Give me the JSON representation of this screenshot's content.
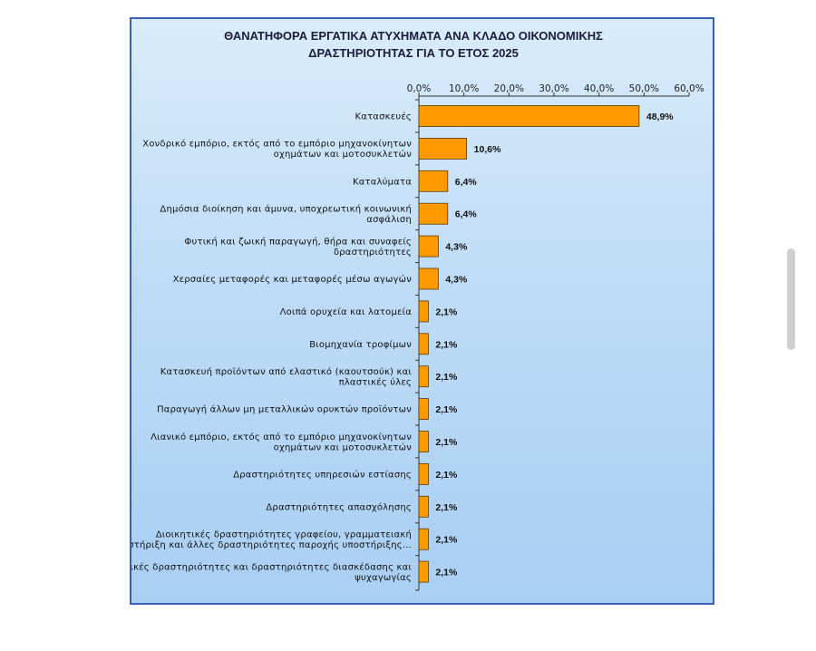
{
  "chart_data": {
    "type": "bar",
    "orientation": "horizontal",
    "title_lines": [
      "ΘΑΝΑΤΗΦΟΡΑ ΕΡΓΑΤΙΚΑ ΑΤΥΧΗΜΑΤΑ ΑΝΑ ΚΛΑΔΟ ΟΙΚΟΝΟΜΙΚΗΣ",
      "ΔΡΑΣΤΗΡΙΟΤΗΤΑΣ ΓΙΑ ΤΟ ΕΤΟΣ 2025"
    ],
    "xlim": [
      0,
      60
    ],
    "x_ticks": [
      "0,0%",
      "10,0%",
      "20,0%",
      "30,0%",
      "40,0%",
      "50,0%",
      "60,0%"
    ],
    "x_axis_position": "top",
    "bar_color": "#ff9900",
    "categories": [
      [
        "Κατασκευές"
      ],
      [
        "Χονδρικό εμπόριο, εκτός από το εμπόριο μηχανοκίνητων",
        "οχημάτων και μοτοσυκλετών"
      ],
      [
        "Καταλύματα"
      ],
      [
        "Δημόσια διοίκηση και άμυνα, υποχρεωτική κοινωνική",
        "ασφάλιση"
      ],
      [
        "Φυτική και ζωική παραγωγή, θήρα και συναφείς",
        "δραστηριότητες"
      ],
      [
        "Χερσαίες μεταφορές και μεταφορές μέσω αγωγών"
      ],
      [
        "Λοιπά ορυχεία και λατομεία"
      ],
      [
        "Βιομηχανία τροφίμων"
      ],
      [
        "Κατασκευή προϊόντων από ελαστικό (καουτσούκ) και",
        "πλαστικές ύλες"
      ],
      [
        "Παραγωγή άλλων μη μεταλλικών ορυκτών προϊόντων"
      ],
      [
        "Λιανικό εμπόριο, εκτός από το εμπόριο μηχανοκίνητων",
        "οχημάτων και μοτοσυκλετών"
      ],
      [
        "Δραστηριότητες υπηρεσιών εστίασης"
      ],
      [
        "Δραστηριότητες απασχόλησης"
      ],
      [
        "Διοικητικές δραστηριότητες γραφείου, γραμματειακή",
        "υποστήριξη και άλλες δραστηριότητες παροχής υποστήριξης..."
      ],
      [
        "Αθλητικές δραστηριότητες και δραστηριότητες διασκέδασης και",
        "ψυχαγωγίας"
      ]
    ],
    "values": [
      48.9,
      10.6,
      6.4,
      6.4,
      4.3,
      4.3,
      2.1,
      2.1,
      2.1,
      2.1,
      2.1,
      2.1,
      2.1,
      2.1,
      2.1
    ],
    "value_labels": [
      "48,9%",
      "10,6%",
      "6,4%",
      "6,4%",
      "4,3%",
      "4,3%",
      "2,1%",
      "2,1%",
      "2,1%",
      "2,1%",
      "2,1%",
      "2,1%",
      "2,1%",
      "2,1%",
      "2,1%"
    ]
  }
}
